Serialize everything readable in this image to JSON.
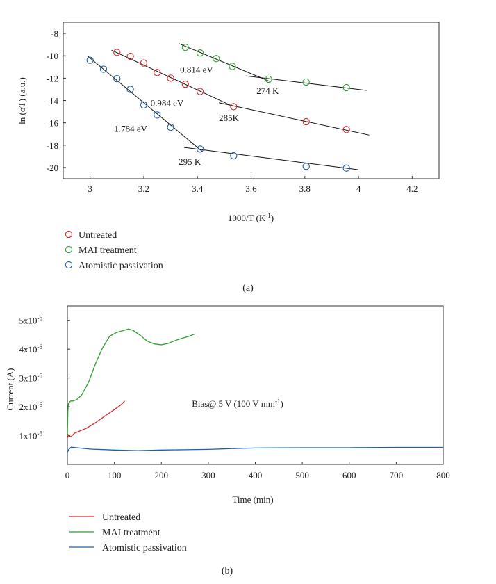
{
  "chart_data": [
    {
      "type": "scatter",
      "panel": "(a)",
      "xlabel": "1000/T (K",
      "xlabel_sup": "-1",
      "xlabel_end": ")",
      "ylabel": "ln (σT) (a.u.)",
      "xlim": [
        2.9,
        4.3
      ],
      "ylim": [
        -21,
        -7
      ],
      "xticks": [
        3.0,
        3.2,
        3.4,
        3.6,
        3.8,
        4.0,
        4.2
      ],
      "xtick_labels": [
        "3",
        "3.2",
        "3.4",
        "3.6",
        "3.8",
        "4",
        "4.2"
      ],
      "yticks": [
        -8,
        -10,
        -12,
        -14,
        -16,
        -18,
        -20
      ],
      "ytick_labels": [
        "-8",
        "-10",
        "-12",
        "-14",
        "-16",
        "-18",
        "-20"
      ],
      "series": [
        {
          "name": "Untreated",
          "color": "#d62728",
          "x": [
            3.1,
            3.15,
            3.2,
            3.25,
            3.3,
            3.355,
            3.41,
            3.535,
            3.805,
            3.955
          ],
          "y": [
            -9.7,
            -10.05,
            -10.65,
            -11.5,
            -12.0,
            -12.55,
            -13.2,
            -14.55,
            -15.9,
            -16.6
          ],
          "fits": [
            {
              "x": [
                3.08,
                3.53
              ],
              "y": [
                -9.5,
                -14.5
              ]
            },
            {
              "x": [
                3.48,
                4.04
              ],
              "y": [
                -14.2,
                -17.1
              ]
            }
          ]
        },
        {
          "name": "MAI treatment",
          "color": "#2ca02c",
          "x": [
            3.355,
            3.41,
            3.47,
            3.53,
            3.665,
            3.805,
            3.955
          ],
          "y": [
            -9.25,
            -9.75,
            -10.25,
            -10.95,
            -12.1,
            -12.35,
            -12.85
          ],
          "fits": [
            {
              "x": [
                3.33,
                3.67
              ],
              "y": [
                -8.9,
                -12.3
              ]
            },
            {
              "x": [
                3.58,
                4.03
              ],
              "y": [
                -11.8,
                -13.1
              ]
            }
          ]
        },
        {
          "name": "Atomistic passivation",
          "color": "#1f5fa8",
          "x": [
            3.0,
            3.05,
            3.1,
            3.15,
            3.2,
            3.25,
            3.3,
            3.41,
            3.535,
            3.805,
            3.955
          ],
          "y": [
            -10.4,
            -11.2,
            -12.05,
            -13.0,
            -14.4,
            -15.3,
            -16.4,
            -18.35,
            -18.95,
            -19.9,
            -20.05
          ],
          "fits": [
            {
              "x": [
                2.99,
                3.42
              ],
              "y": [
                -10.0,
                -18.6
              ]
            },
            {
              "x": [
                3.35,
                4.0
              ],
              "y": [
                -18.2,
                -20.2
              ]
            }
          ]
        }
      ],
      "annotations": [
        {
          "text": "0.814 eV",
          "x": 3.335,
          "y": -11.5
        },
        {
          "text": "274 K",
          "x": 3.62,
          "y": -13.4
        },
        {
          "text": "0.984 eV",
          "x": 3.225,
          "y": -14.5
        },
        {
          "text": "285K",
          "x": 3.48,
          "y": -15.85
        },
        {
          "text": "1.784 eV",
          "x": 3.09,
          "y": -16.8
        },
        {
          "text": "295 K",
          "x": 3.33,
          "y": -19.75
        }
      ],
      "legend": [
        "Untreated",
        "MAI treatment",
        "Atomistic passivation"
      ]
    },
    {
      "type": "line",
      "panel": "(b)",
      "xlabel": "Time (min)",
      "ylabel": "Current (A)",
      "xlim": [
        0,
        800
      ],
      "ylim": [
        0,
        5.5e-06
      ],
      "xticks": [
        0,
        100,
        200,
        300,
        400,
        500,
        600,
        700,
        800
      ],
      "xtick_labels": [
        "0",
        "100",
        "200",
        "300",
        "400",
        "500",
        "600",
        "700",
        "800"
      ],
      "yticks": [
        1e-06,
        2e-06,
        3e-06,
        4e-06,
        5e-06
      ],
      "ytick_mantissa": [
        "1x10",
        "2x10",
        "3x10",
        "4x10",
        "5x10"
      ],
      "ytick_exp": "-6",
      "annotation": {
        "text": "Bias@ 5 V (100 V mm",
        "sup": "-1",
        "end": ")",
        "x": 265,
        "y": 2e-06
      },
      "series": [
        {
          "name": "Untreated",
          "color": "#d62728",
          "x": [
            0,
            1,
            3,
            8,
            15,
            25,
            40,
            60,
            80,
            100,
            115,
            122
          ],
          "y": [
            9e-07,
            1.05e-06,
            9.8e-07,
            9.7e-07,
            1.08e-06,
            1.15e-06,
            1.25e-06,
            1.45e-06,
            1.68e-06,
            1.9e-06,
            2.08e-06,
            2.2e-06
          ]
        },
        {
          "name": "MAI treatment",
          "color": "#2ca02c",
          "x": [
            0,
            1,
            2,
            4,
            7,
            12,
            20,
            30,
            45,
            60,
            75,
            90,
            105,
            120,
            130,
            140,
            155,
            170,
            185,
            200,
            215,
            230,
            245,
            260,
            272
          ],
          "y": [
            1e-06,
            1.85e-06,
            2.1e-06,
            2.15e-06,
            2.2e-06,
            2.2e-06,
            2.25e-06,
            2.4e-06,
            2.85e-06,
            3.5e-06,
            4.05e-06,
            4.45e-06,
            4.58e-06,
            4.65e-06,
            4.7e-06,
            4.65e-06,
            4.48e-06,
            4.28e-06,
            4.18e-06,
            4.15e-06,
            4.2e-06,
            4.3e-06,
            4.38e-06,
            4.45e-06,
            4.53e-06
          ]
        },
        {
          "name": "Atomistic passivation",
          "color": "#1f5fa8",
          "x": [
            0,
            3,
            8,
            20,
            50,
            100,
            150,
            200,
            250,
            300,
            350,
            400,
            500,
            600,
            700,
            800
          ],
          "y": [
            4.2e-07,
            5.2e-07,
            6e-07,
            5.8e-07,
            5.3e-07,
            5e-07,
            4.8e-07,
            5e-07,
            5.1e-07,
            5.2e-07,
            5.5e-07,
            5.7e-07,
            5.8e-07,
            5.8e-07,
            5.9e-07,
            5.9e-07
          ]
        }
      ],
      "legend": [
        "Untreated",
        "MAI treatment",
        "Atomistic passivation"
      ]
    }
  ]
}
